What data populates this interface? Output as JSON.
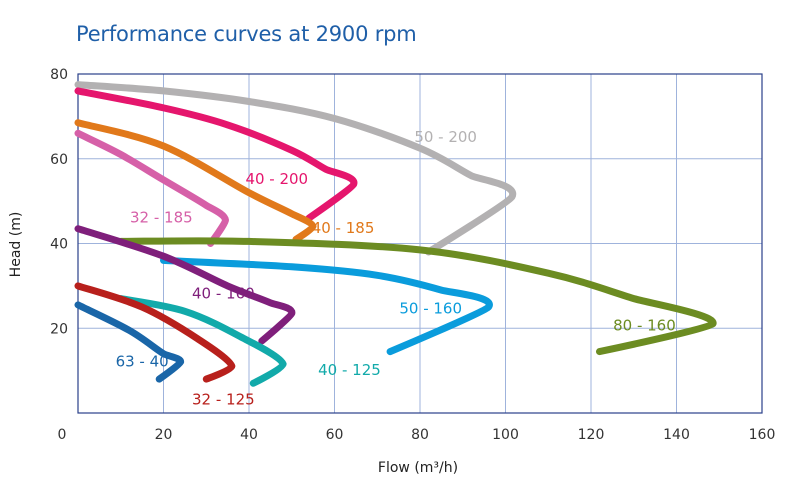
{
  "chart_data": {
    "type": "line",
    "title": "Performance curves at 2900 rpm",
    "xlabel": "Flow (m³/h)",
    "ylabel": "Head (m)",
    "xlim": [
      0,
      160
    ],
    "ylim": [
      0,
      80
    ],
    "x_ticks": [
      "0",
      "20",
      "40",
      "60",
      "80",
      "100",
      "120",
      "140",
      "160"
    ],
    "y_ticks": [
      "20",
      "40",
      "60",
      "80"
    ],
    "grid": true,
    "series": [
      {
        "name": "50 - 200",
        "color": "#b3b1b2",
        "points": [
          [
            0,
            77.5
          ],
          [
            20,
            76
          ],
          [
            40,
            73.5
          ],
          [
            60,
            69.5
          ],
          [
            80,
            62.5
          ],
          [
            92,
            56
          ],
          [
            101.5,
            51
          ],
          [
            82,
            38
          ]
        ]
      },
      {
        "name": "40 - 200",
        "color": "#e5166d",
        "points": [
          [
            0,
            76
          ],
          [
            20,
            72
          ],
          [
            35,
            68
          ],
          [
            50,
            62
          ],
          [
            58,
            57.5
          ],
          [
            64.5,
            54
          ],
          [
            54,
            46
          ]
        ]
      },
      {
        "name": "40 - 185",
        "color": "#e1791b",
        "points": [
          [
            0,
            68.5
          ],
          [
            20,
            63
          ],
          [
            40,
            52
          ],
          [
            50,
            47
          ],
          [
            55,
            44
          ],
          [
            51,
            41
          ]
        ]
      },
      {
        "name": "32 - 185",
        "color": "#d660a8",
        "points": [
          [
            0,
            66
          ],
          [
            10,
            61
          ],
          [
            20,
            55
          ],
          [
            30,
            49
          ],
          [
            34.5,
            45.5
          ],
          [
            31,
            40
          ]
        ]
      },
      {
        "name": "80 - 160",
        "color": "#6c8c22",
        "points": [
          [
            10,
            40.5
          ],
          [
            40,
            40.5
          ],
          [
            80,
            38.5
          ],
          [
            110,
            33
          ],
          [
            130,
            27
          ],
          [
            148.5,
            21
          ],
          [
            122,
            14.5
          ]
        ]
      },
      {
        "name": "50 - 160",
        "color": "#0a9cdc",
        "points": [
          [
            20,
            36
          ],
          [
            50,
            34.5
          ],
          [
            70,
            32.5
          ],
          [
            85,
            29
          ],
          [
            96,
            25
          ],
          [
            73,
            14.5
          ]
        ]
      },
      {
        "name": "40 - 160",
        "color": "#7f1f7b",
        "points": [
          [
            0,
            43.5
          ],
          [
            20,
            37
          ],
          [
            35,
            30
          ],
          [
            45,
            26
          ],
          [
            50,
            23.5
          ],
          [
            43,
            17
          ]
        ]
      },
      {
        "name": "40 - 125",
        "color": "#12aaaa",
        "points": [
          [
            10,
            27
          ],
          [
            25,
            24
          ],
          [
            38,
            18
          ],
          [
            48,
            11.5
          ],
          [
            41,
            7
          ]
        ]
      },
      {
        "name": "32 - 125",
        "color": "#b8201c",
        "points": [
          [
            0,
            30
          ],
          [
            15,
            25
          ],
          [
            28,
            17.5
          ],
          [
            36,
            11
          ],
          [
            30,
            8
          ]
        ]
      },
      {
        "name": "63 - 40",
        "color": "#1a66a8",
        "points": [
          [
            0,
            25.5
          ],
          [
            12,
            19.5
          ],
          [
            20,
            14
          ],
          [
            24,
            12
          ],
          [
            19,
            8
          ]
        ]
      }
    ],
    "labels": [
      {
        "text": "50 - 200",
        "x": 86,
        "y": 64,
        "color": "#b3b1b2"
      },
      {
        "text": "40 - 200",
        "x": 46.5,
        "y": 54,
        "color": "#e5166d"
      },
      {
        "text": "40 - 185",
        "x": 62,
        "y": 42.5,
        "color": "#e1791b"
      },
      {
        "text": "32 - 185",
        "x": 19.5,
        "y": 45,
        "color": "#d660a8"
      },
      {
        "text": "80 - 160",
        "x": 132.5,
        "y": 19.5,
        "color": "#6c8c22"
      },
      {
        "text": "50 - 160",
        "x": 82.5,
        "y": 23.5,
        "color": "#0a9cdc"
      },
      {
        "text": "40 - 160",
        "x": 34,
        "y": 27,
        "color": "#7f1f7b"
      },
      {
        "text": "40 - 125",
        "x": 63.5,
        "y": 9,
        "color": "#12aaaa"
      },
      {
        "text": "32 - 125",
        "x": 34,
        "y": 2,
        "color": "#b8201c"
      },
      {
        "text": "63 - 40",
        "x": 15,
        "y": 11,
        "color": "#1a66a8"
      }
    ]
  }
}
